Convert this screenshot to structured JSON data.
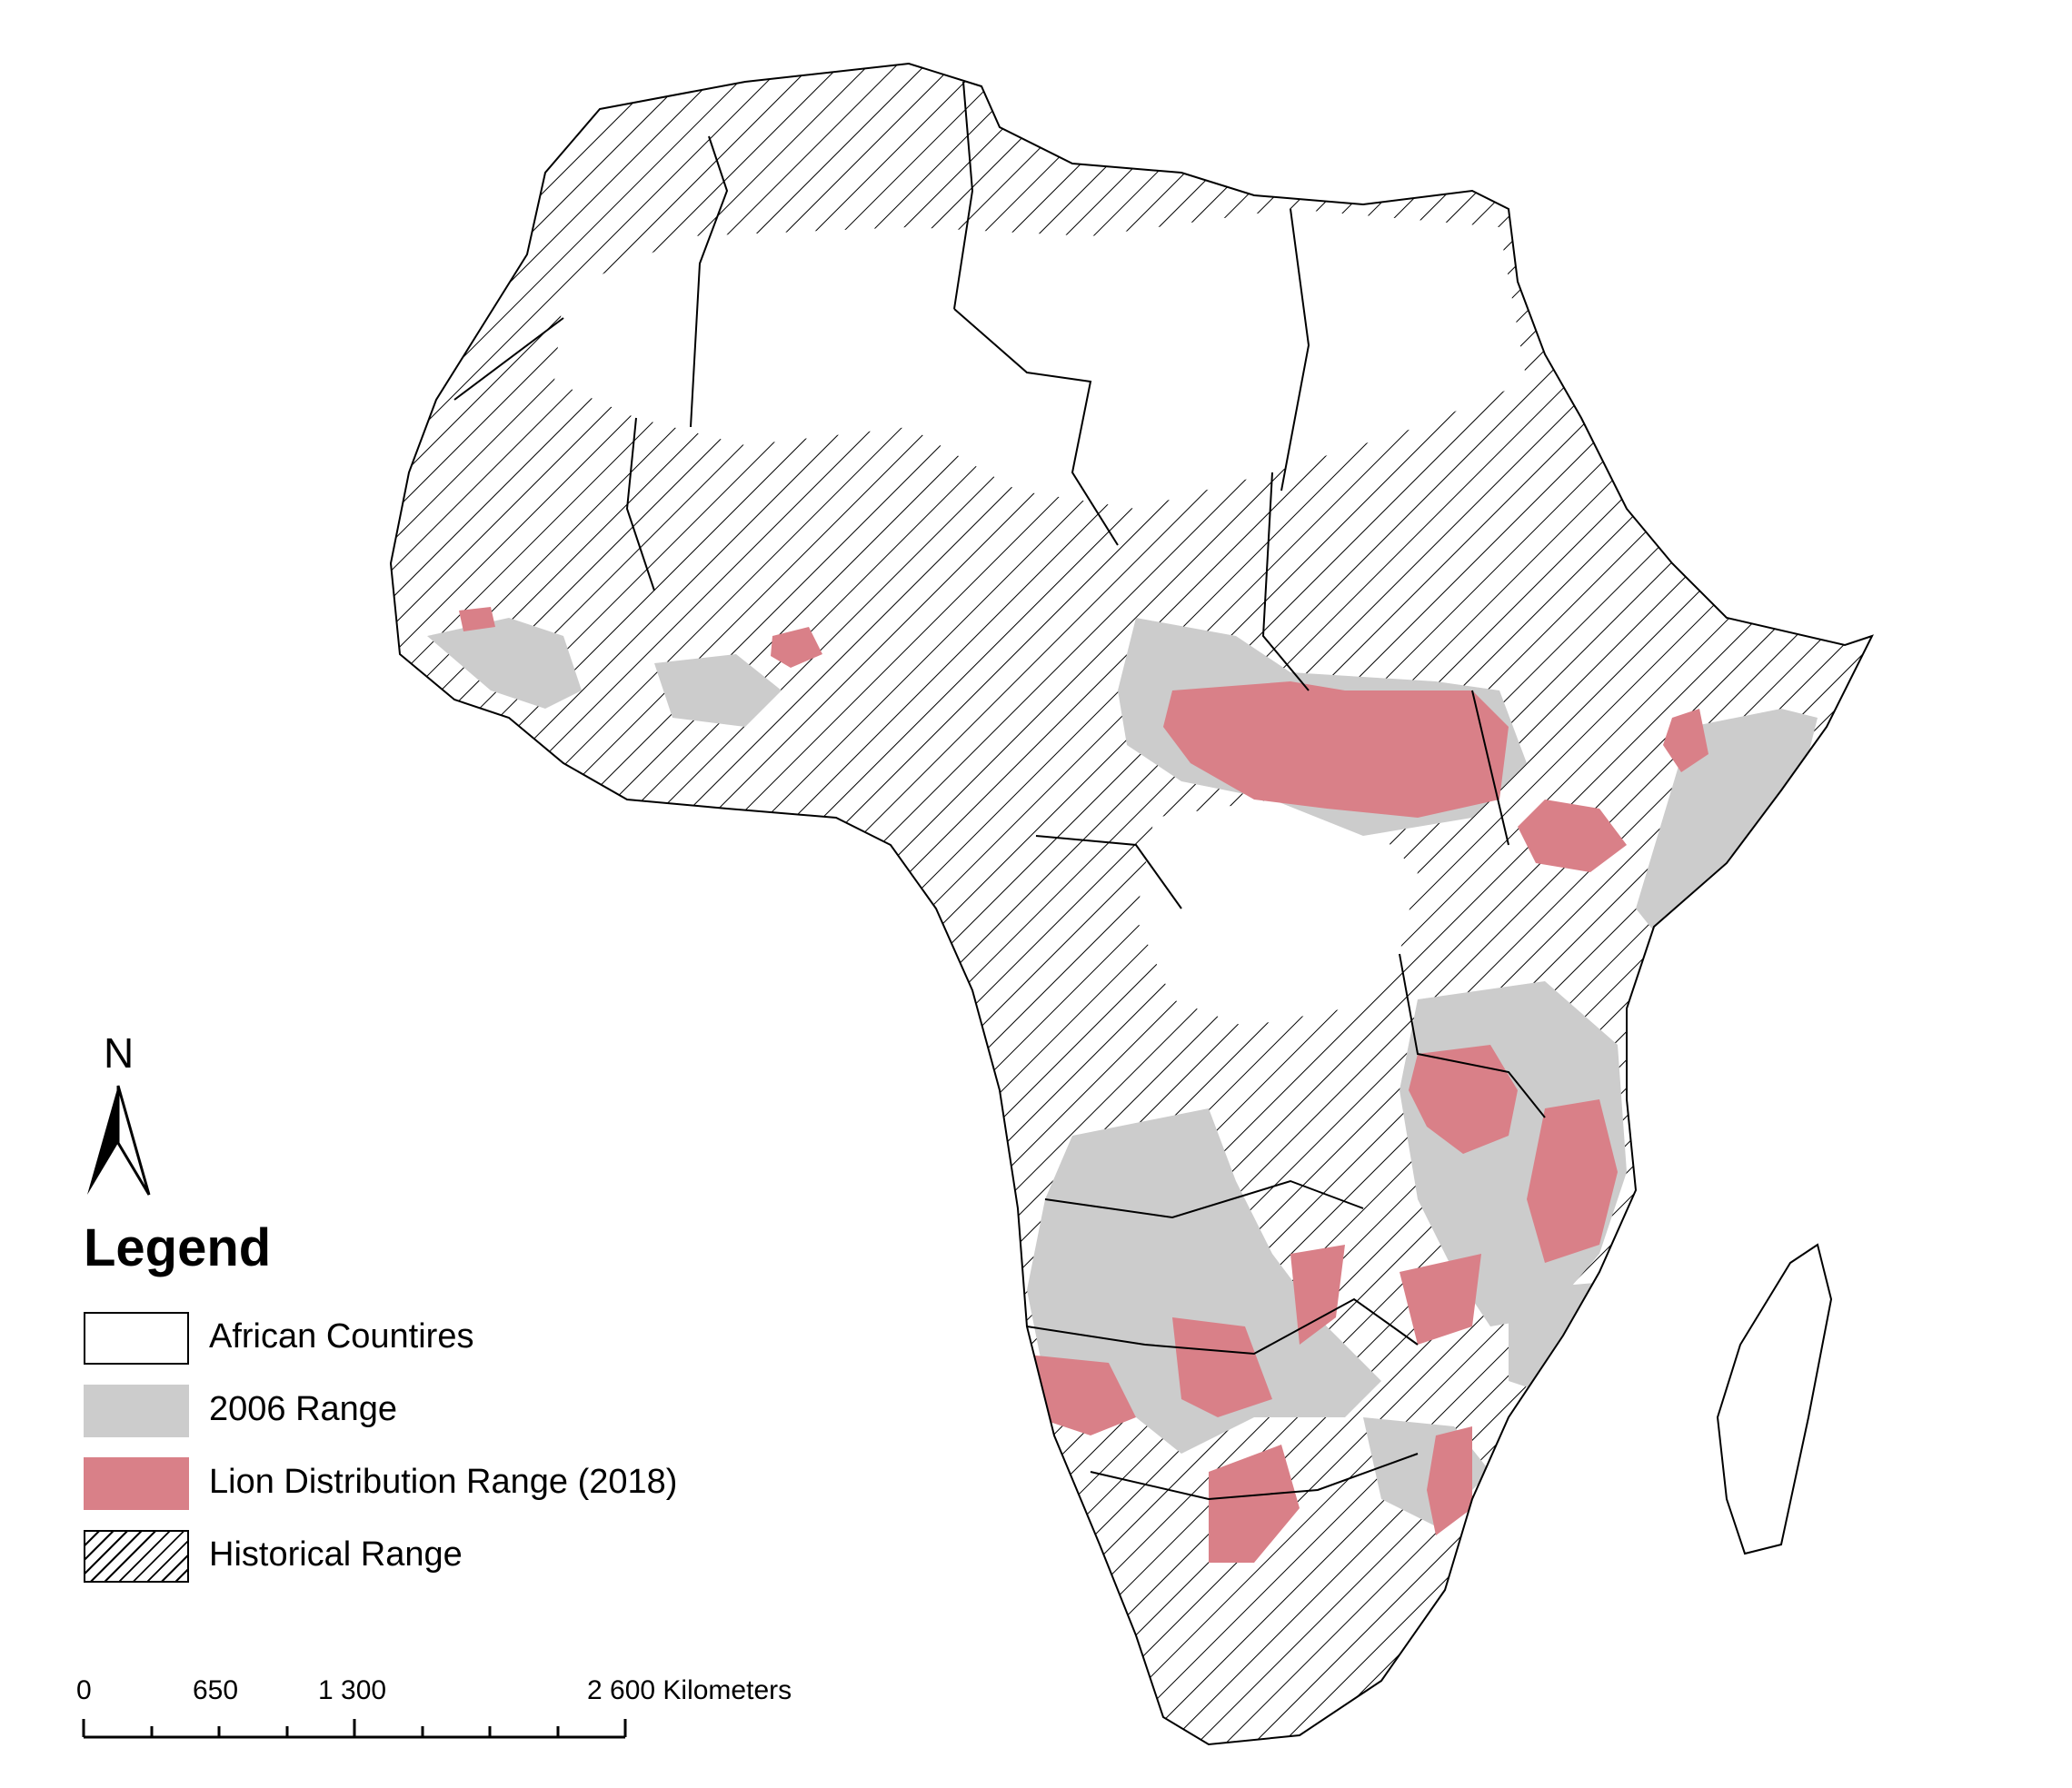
{
  "map": {
    "north_label": "N",
    "legend": {
      "title": "Legend",
      "items": [
        {
          "label": "African Countires"
        },
        {
          "label": "2006 Range",
          "color": "#cccccc"
        },
        {
          "label": "Lion Distribution Range (2018)",
          "color": "#d98088"
        },
        {
          "label": "Historical Range"
        }
      ]
    },
    "scale_bar": {
      "labels": [
        "0",
        "650",
        "1 300",
        "2 600 Kilometers"
      ]
    }
  }
}
